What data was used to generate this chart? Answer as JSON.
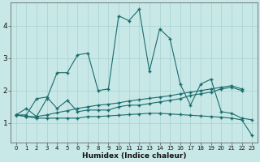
{
  "xlabel": "Humidex (Indice chaleur)",
  "x": [
    0,
    1,
    2,
    3,
    4,
    5,
    6,
    7,
    8,
    9,
    10,
    11,
    12,
    13,
    14,
    15,
    16,
    17,
    18,
    19,
    20,
    21,
    22,
    23
  ],
  "line1_y": [
    1.25,
    1.45,
    1.2,
    1.75,
    2.55,
    2.55,
    3.1,
    3.15,
    2.0,
    2.05,
    4.3,
    4.15,
    4.5,
    2.6,
    3.9,
    3.6,
    2.2,
    1.55,
    2.2,
    2.35,
    1.35,
    1.3,
    1.15,
    1.1
  ],
  "line2_y": [
    1.25,
    1.25,
    1.75,
    1.8,
    1.45,
    1.7,
    1.35,
    1.4,
    1.4,
    1.4,
    1.5,
    1.55,
    1.55,
    1.6,
    1.65,
    1.7,
    1.75,
    1.85,
    1.9,
    1.95,
    2.05,
    2.1,
    2.0,
    null
  ],
  "line3_y": [
    1.25,
    1.2,
    1.15,
    1.15,
    1.15,
    1.15,
    1.15,
    1.2,
    1.2,
    1.22,
    1.24,
    1.26,
    1.28,
    1.3,
    1.3,
    1.28,
    1.26,
    1.24,
    1.22,
    1.2,
    1.18,
    1.15,
    1.1,
    0.62
  ],
  "line4_y": [
    1.25,
    1.2,
    1.2,
    1.25,
    1.32,
    1.38,
    1.45,
    1.5,
    1.55,
    1.58,
    1.62,
    1.68,
    1.72,
    1.76,
    1.8,
    1.84,
    1.9,
    1.95,
    2.0,
    2.05,
    2.1,
    2.15,
    2.05,
    null
  ],
  "bg_color": "#c8e8e8",
  "line_color": "#1a6b6b",
  "grid_color": "#a8d0d0",
  "ylim": [
    0.4,
    4.7
  ],
  "yticks": [
    1,
    2,
    3,
    4
  ],
  "xticks": [
    0,
    1,
    2,
    3,
    4,
    5,
    6,
    7,
    8,
    9,
    10,
    11,
    12,
    13,
    14,
    15,
    16,
    17,
    18,
    19,
    20,
    21,
    22,
    23
  ],
  "tick_fontsize": 5.0,
  "xlabel_fontsize": 6.5,
  "ytick_fontsize": 6.5,
  "marker": "+",
  "markersize": 3.5,
  "linewidth": 0.8
}
